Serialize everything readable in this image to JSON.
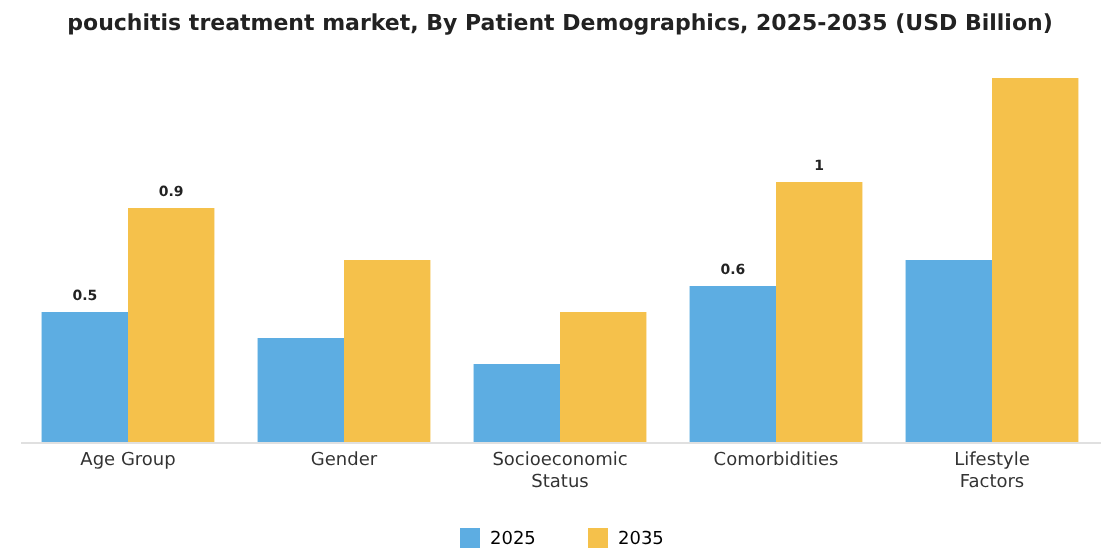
{
  "chart_data": {
    "type": "bar",
    "title": "pouchitis treatment market, By Patient Demographics, 2025-2035 (USD Billion)",
    "categories": [
      "Age Group",
      "Gender",
      "Socioeconomic Status",
      "Comorbidities",
      "Lifestyle Factors"
    ],
    "series": [
      {
        "name": "2025",
        "color": "#5dade2",
        "values": [
          0.5,
          0.4,
          0.3,
          0.6,
          0.7
        ],
        "value_labels": [
          "0.5",
          null,
          null,
          "0.6",
          null
        ]
      },
      {
        "name": "2035",
        "color": "#f5c14b",
        "values": [
          0.9,
          0.7,
          0.5,
          1.0,
          1.4
        ],
        "value_labels": [
          "0.9",
          null,
          null,
          "1",
          null
        ]
      }
    ],
    "legend": "bottom",
    "grid": false
  }
}
